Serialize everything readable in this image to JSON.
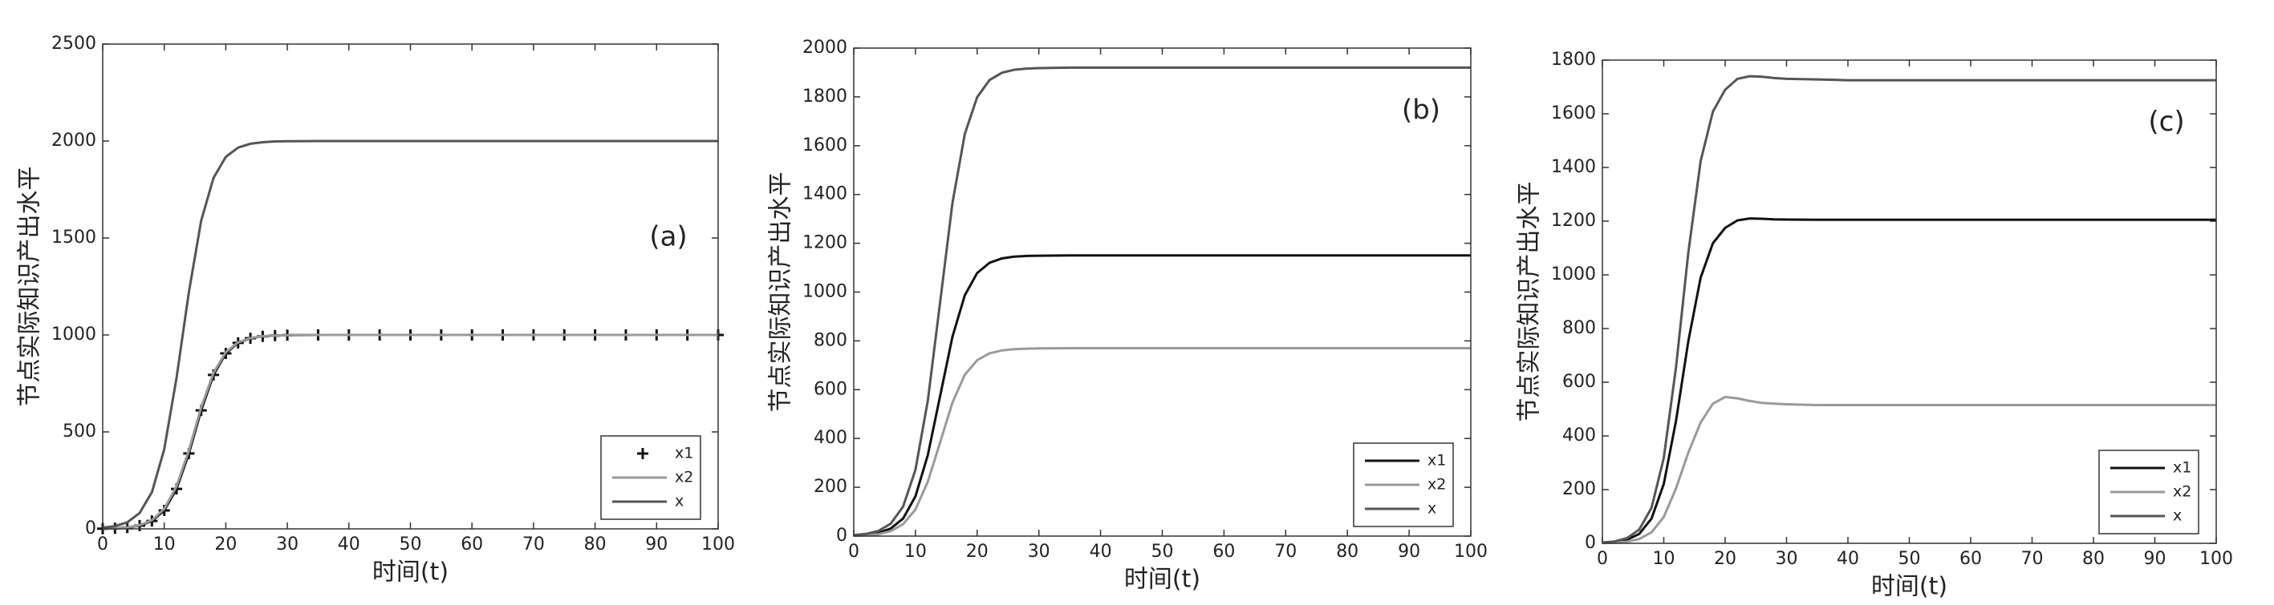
{
  "chart_data": [
    {
      "type": "line",
      "annotation": "(a)",
      "xlabel": "时间(t)",
      "ylabel": "节点实际知识产出水平",
      "x": [
        0,
        2,
        4,
        6,
        8,
        10,
        12,
        14,
        16,
        18,
        20,
        22,
        24,
        26,
        28,
        30,
        35,
        40,
        45,
        50,
        55,
        60,
        65,
        70,
        75,
        80,
        85,
        90,
        95,
        100
      ],
      "xlim": [
        0,
        100
      ],
      "xticks": [
        0,
        10,
        20,
        30,
        40,
        50,
        60,
        70,
        80,
        90,
        100
      ],
      "ylim": [
        0,
        2500
      ],
      "yticks": [
        0,
        500,
        1000,
        1500,
        2000,
        2500
      ],
      "legend": "lower right",
      "series": [
        {
          "name": "x1",
          "color": "#111111",
          "marker": "+",
          "values": [
            1,
            3,
            7,
            17,
            41,
            95,
            206,
            389,
            611,
            794,
            905,
            959,
            983,
            993,
            997,
            999,
            1000,
            1000,
            1000,
            1000,
            1000,
            1000,
            1000,
            1000,
            1000,
            1000,
            1000,
            1000,
            1000,
            1000
          ]
        },
        {
          "name": "x2",
          "color": "#9a9a9a",
          "values": [
            1,
            3,
            8,
            19,
            45,
            103,
            220,
            405,
            627,
            805,
            911,
            962,
            984,
            994,
            997,
            999,
            1000,
            1000,
            1000,
            1000,
            1000,
            1000,
            1000,
            1000,
            1000,
            1000,
            1000,
            1000,
            1000,
            1000
          ]
        },
        {
          "name": "x",
          "color": "#555555",
          "values": [
            6,
            14,
            34,
            82,
            190,
            411,
            778,
            1221,
            1589,
            1810,
            1918,
            1966,
            1986,
            1994,
            1998,
            1999,
            2000,
            2000,
            2000,
            2000,
            2000,
            2000,
            2000,
            2000,
            2000,
            2000,
            2000,
            2000,
            2000,
            2000
          ]
        }
      ]
    },
    {
      "type": "line",
      "annotation": "(b)",
      "xlabel": "时间(t)",
      "ylabel": "节点实际知识产出水平",
      "x": [
        0,
        2,
        4,
        6,
        8,
        10,
        12,
        14,
        16,
        18,
        20,
        22,
        24,
        26,
        28,
        30,
        35,
        40,
        45,
        50,
        55,
        60,
        65,
        70,
        75,
        80,
        85,
        90,
        95,
        100
      ],
      "xlim": [
        0,
        100
      ],
      "xticks": [
        0,
        10,
        20,
        30,
        40,
        50,
        60,
        70,
        80,
        90,
        100
      ],
      "ylim": [
        0,
        2000
      ],
      "yticks": [
        0,
        200,
        400,
        600,
        800,
        1000,
        1200,
        1400,
        1600,
        1800,
        2000
      ],
      "legend": "lower right",
      "series": [
        {
          "name": "x1",
          "color": "#111111",
          "values": [
            2,
            5,
            13,
            31,
            72,
            163,
            332,
            575,
            817,
            987,
            1078,
            1120,
            1138,
            1145,
            1148,
            1149,
            1150,
            1150,
            1150,
            1150,
            1150,
            1150,
            1150,
            1150,
            1150,
            1150,
            1150,
            1150,
            1150,
            1150
          ]
        },
        {
          "name": "x2",
          "color": "#9a9a9a",
          "values": [
            1,
            3,
            8,
            20,
            49,
            109,
            223,
            385,
            547,
            661,
            721,
            749,
            761,
            766,
            768,
            769,
            770,
            770,
            770,
            770,
            770,
            770,
            770,
            770,
            770,
            770,
            770,
            770,
            770,
            770
          ]
        },
        {
          "name": "x",
          "color": "#555555",
          "values": [
            4,
            9,
            21,
            51,
            121,
            272,
            555,
            960,
            1365,
            1648,
            1799,
            1869,
            1899,
            1911,
            1916,
            1918,
            1920,
            1920,
            1920,
            1920,
            1920,
            1920,
            1920,
            1920,
            1920,
            1920,
            1920,
            1920,
            1920,
            1920
          ]
        }
      ]
    },
    {
      "type": "line",
      "annotation": "(c)",
      "xlabel": "时间(t)",
      "ylabel": "节点实际知识产出水平",
      "x": [
        0,
        2,
        4,
        6,
        8,
        10,
        12,
        14,
        16,
        18,
        20,
        22,
        24,
        26,
        28,
        30,
        35,
        40,
        45,
        50,
        55,
        60,
        65,
        70,
        75,
        80,
        85,
        90,
        95,
        100
      ],
      "xlim": [
        0,
        100
      ],
      "xticks": [
        0,
        10,
        20,
        30,
        40,
        50,
        60,
        70,
        80,
        90,
        100
      ],
      "ylim": [
        0,
        1800
      ],
      "yticks": [
        0,
        200,
        400,
        600,
        800,
        1000,
        1200,
        1400,
        1600,
        1800
      ],
      "legend": "lower right",
      "series": [
        {
          "name": "x1",
          "color": "#111111",
          "values": [
            2,
            5,
            13,
            35,
            92,
            221,
            457,
            753,
            989,
            1118,
            1175,
            1203,
            1210,
            1209,
            1207,
            1206,
            1205,
            1205,
            1205,
            1205,
            1205,
            1205,
            1205,
            1205,
            1205,
            1205,
            1205,
            1205,
            1205,
            1205
          ]
        },
        {
          "name": "x2",
          "color": "#9a9a9a",
          "values": [
            1,
            2,
            6,
            16,
            41,
            98,
            205,
            338,
            450,
            520,
            545,
            540,
            530,
            523,
            520,
            518,
            515,
            515,
            515,
            515,
            515,
            515,
            515,
            515,
            515,
            515,
            515,
            515,
            515,
            515
          ]
        },
        {
          "name": "x",
          "color": "#555555",
          "values": [
            3,
            7,
            19,
            51,
            132,
            318,
            657,
            1083,
            1423,
            1608,
            1690,
            1730,
            1740,
            1738,
            1733,
            1730,
            1728,
            1725,
            1725,
            1725,
            1725,
            1725,
            1725,
            1725,
            1725,
            1725,
            1725,
            1725,
            1725,
            1725
          ]
        }
      ]
    }
  ]
}
